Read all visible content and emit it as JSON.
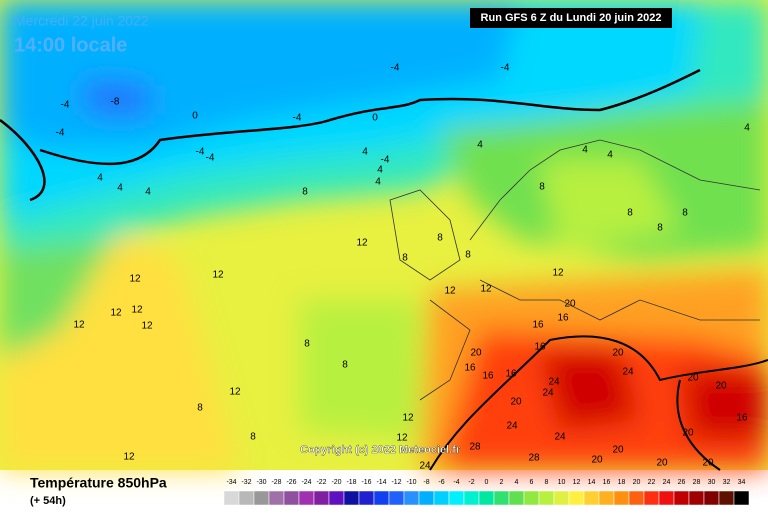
{
  "header": {
    "date": "Mercredi 22 juin 2022",
    "time": "14:00 locale",
    "run": "Run GFS 6 Z du Lundi 20 juin 2022",
    "copyright": "Copyright (c) 2022 Meteociel.fr"
  },
  "footer": {
    "title": "Température 850hPa",
    "lead": "(+ 54h)"
  },
  "scale": {
    "values": [
      -34,
      -32,
      -30,
      -28,
      -26,
      -24,
      -22,
      -20,
      -18,
      -16,
      -14,
      -12,
      -10,
      -8,
      -6,
      -4,
      -2,
      0,
      2,
      4,
      6,
      8,
      10,
      12,
      14,
      16,
      18,
      20,
      22,
      24,
      26,
      28,
      30,
      32,
      34
    ],
    "colors": [
      "#d8d8d8",
      "#b8b8b8",
      "#989898",
      "#a070a8",
      "#9050a0",
      "#a030b0",
      "#8020a0",
      "#6010c0",
      "#1010a0",
      "#2020d0",
      "#1040f0",
      "#2060ff",
      "#2890ff",
      "#00b0ff",
      "#00d0ff",
      "#00f0ff",
      "#00f0d0",
      "#00e8a0",
      "#30e070",
      "#60e050",
      "#90e840",
      "#b8f040",
      "#e0f040",
      "#fff040",
      "#ffd030",
      "#ffb020",
      "#ff9010",
      "#ff6010",
      "#ff3010",
      "#f01010",
      "#c00000",
      "#a00000",
      "#800000",
      "#601000",
      "#000000"
    ]
  },
  "contour_labels": [
    -8,
    -4,
    -4,
    -4,
    -4,
    -4,
    0,
    0,
    -4,
    -4,
    4,
    4,
    4,
    4,
    -4,
    4,
    4,
    4,
    4,
    4,
    4,
    8,
    8,
    8,
    8,
    8,
    12,
    8,
    8,
    8,
    12,
    12,
    12,
    12,
    12,
    12,
    12,
    12,
    12,
    16,
    16,
    20,
    20,
    24,
    24,
    20,
    20,
    24,
    20,
    24,
    24,
    28,
    28,
    24,
    20,
    20,
    16,
    8,
    8,
    8,
    12,
    12,
    12,
    8,
    16,
    16,
    20,
    16,
    20,
    20,
    20,
    16,
    12
  ]
}
